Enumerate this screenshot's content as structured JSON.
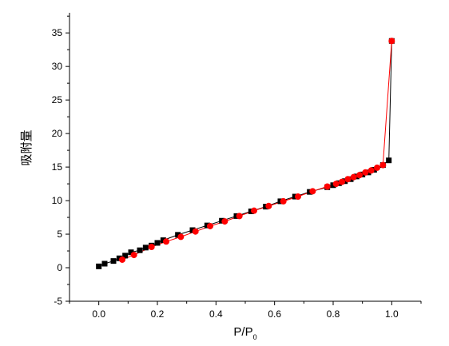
{
  "chart_data": {
    "type": "scatter",
    "title": "",
    "xlabel": "P/P",
    "xlabel_subscript": "0",
    "ylabel": "吸附量",
    "xlim": [
      -0.1,
      1.1
    ],
    "ylim": [
      -5,
      38
    ],
    "x_ticks": [
      0.0,
      0.2,
      0.4,
      0.6,
      0.8,
      1.0
    ],
    "x_tick_labels": [
      "0.0",
      "0.2",
      "0.4",
      "0.6",
      "0.8",
      "1.0"
    ],
    "y_ticks": [
      -5,
      0,
      5,
      10,
      15,
      20,
      25,
      30,
      35
    ],
    "y_tick_labels": [
      "-5",
      "0",
      "5",
      "10",
      "15",
      "20",
      "25",
      "30",
      "35"
    ],
    "grid": false,
    "legend": "none",
    "series": [
      {
        "color": "#000000",
        "marker": "square",
        "x": [
          0.0,
          0.02,
          0.05,
          0.07,
          0.09,
          0.11,
          0.14,
          0.16,
          0.18,
          0.2,
          0.22,
          0.27,
          0.32,
          0.37,
          0.42,
          0.47,
          0.52,
          0.57,
          0.62,
          0.67,
          0.72,
          0.78,
          0.8,
          0.82,
          0.84,
          0.86,
          0.88,
          0.9,
          0.92,
          0.94,
          0.97,
          0.99,
          1.0
        ],
        "y": [
          0.2,
          0.6,
          1.0,
          1.4,
          1.8,
          2.3,
          2.6,
          3.0,
          3.3,
          3.7,
          4.1,
          4.9,
          5.6,
          6.3,
          7.0,
          7.7,
          8.4,
          9.1,
          9.9,
          10.6,
          11.3,
          12.0,
          12.3,
          12.6,
          12.9,
          13.2,
          13.6,
          13.9,
          14.2,
          14.6,
          15.3,
          16.0,
          33.8
        ]
      },
      {
        "color": "#ff0000",
        "marker": "circle",
        "x": [
          0.08,
          0.12,
          0.18,
          0.23,
          0.28,
          0.33,
          0.38,
          0.43,
          0.48,
          0.53,
          0.58,
          0.63,
          0.68,
          0.73,
          0.78,
          0.81,
          0.83,
          0.85,
          0.87,
          0.89,
          0.91,
          0.93,
          0.95,
          0.97,
          1.0
        ],
        "y": [
          1.2,
          1.9,
          3.1,
          3.9,
          4.6,
          5.4,
          6.2,
          6.9,
          7.7,
          8.5,
          9.2,
          9.9,
          10.6,
          11.4,
          12.1,
          12.5,
          12.8,
          13.2,
          13.5,
          13.8,
          14.2,
          14.5,
          14.9,
          15.3,
          33.8
        ]
      }
    ]
  }
}
